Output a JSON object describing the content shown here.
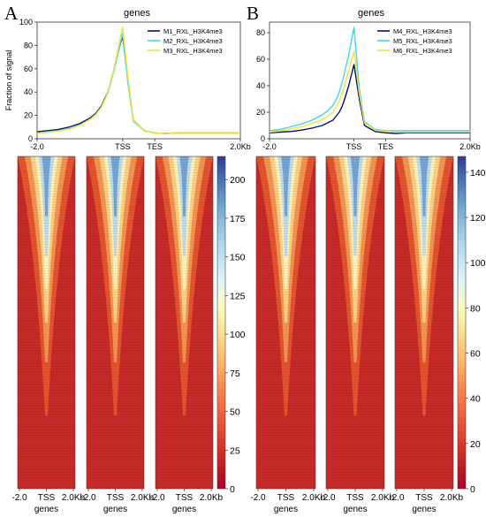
{
  "chart_data": [
    {
      "type": "line",
      "panel": "A",
      "title": "genes",
      "ylabel": "Fraction of signal",
      "xlabel_ticks": [
        "-2.0",
        "TSS",
        "TES",
        "2.0Kb"
      ],
      "ylim": [
        0,
        100
      ],
      "yticks": [
        0,
        20,
        40,
        60,
        80,
        100
      ],
      "legend_position": "top-right",
      "x": [
        0,
        10,
        20,
        30,
        40,
        50,
        55,
        60,
        62,
        64,
        66,
        68,
        70,
        72,
        75,
        80,
        85,
        90,
        100,
        110,
        120,
        130,
        140,
        150,
        160,
        170,
        180,
        190
      ],
      "series": [
        {
          "name": "M1_RXL_H3K4me3",
          "color": "#0d0d6e",
          "values": [
            6,
            7,
            8,
            10,
            13,
            18,
            22,
            28,
            32,
            36,
            40,
            46,
            53,
            60,
            72,
            88,
            50,
            16,
            7,
            5,
            4.5,
            5,
            5,
            5,
            5,
            5,
            5,
            5
          ]
        },
        {
          "name": "M2_RXL_H3K4me3",
          "color": "#3fd6e6",
          "values": [
            5,
            6,
            7,
            9,
            12,
            17,
            21,
            27,
            31,
            35,
            39,
            45,
            52,
            59,
            71,
            90,
            47,
            15,
            7,
            5,
            4.5,
            5,
            5,
            5,
            5,
            5,
            5,
            5
          ]
        },
        {
          "name": "M3_RXL_H3K4me3",
          "color": "#f2e23a",
          "values": [
            4.5,
            5.5,
            6.5,
            8.5,
            11.5,
            17,
            21,
            27,
            31,
            35,
            40,
            46,
            53,
            61,
            74,
            96,
            52,
            16,
            7,
            5,
            4.5,
            5,
            5,
            5,
            5,
            5,
            5,
            5
          ]
        }
      ],
      "heatmap": {
        "xticks": [
          "-2.0",
          "TSS",
          "2.0Kb"
        ],
        "xlabel": "genes",
        "colorbar_ticks": [
          0,
          25,
          50,
          75,
          100,
          125,
          150,
          175,
          200
        ],
        "colorbar_max": 215
      }
    },
    {
      "type": "line",
      "panel": "B",
      "title": "genes",
      "xlabel_ticks": [
        "-2.0",
        "TSS",
        "TES",
        "2.0Kb"
      ],
      "ylim": [
        0,
        88
      ],
      "yticks": [
        0,
        20,
        40,
        60,
        80
      ],
      "legend_position": "top-right",
      "x": [
        0,
        10,
        20,
        30,
        40,
        50,
        55,
        60,
        62,
        64,
        66,
        68,
        70,
        72,
        75,
        80,
        85,
        90,
        100,
        110,
        120,
        130,
        140,
        150,
        160,
        170,
        180,
        190
      ],
      "series": [
        {
          "name": "M4_RXL_H3K4me3",
          "color": "#0d0d6e",
          "values": [
            4.5,
            5,
            5.5,
            6.5,
            8,
            10,
            12,
            14,
            16,
            18,
            20,
            23,
            27,
            32,
            40,
            56,
            30,
            10,
            5.5,
            4.5,
            4,
            4.5,
            4.5,
            4.5,
            4.5,
            4.5,
            4.5,
            4.5
          ]
        },
        {
          "name": "M5_RXL_H3K4me3",
          "color": "#3fd6e6",
          "values": [
            6,
            7,
            9,
            11,
            14,
            18,
            21,
            25,
            28,
            31,
            35,
            40,
            46,
            53,
            63,
            84,
            38,
            13,
            7,
            6,
            6,
            6,
            6,
            6,
            6,
            6,
            6,
            6
          ]
        },
        {
          "name": "M6_RXL_H3K4me3",
          "color": "#f2e23a",
          "values": [
            5,
            6,
            7.5,
            9,
            11.5,
            14.5,
            17,
            20,
            22.5,
            25,
            28,
            32,
            37,
            43,
            51,
            66,
            34,
            12,
            6.5,
            5.5,
            5,
            5,
            5,
            5,
            5,
            5,
            5,
            5
          ]
        }
      ],
      "heatmap": {
        "xticks": [
          "-2.0",
          "TSS",
          "2.0Kb"
        ],
        "xlabel": "genes",
        "colorbar_ticks": [
          0,
          20,
          40,
          60,
          80,
          100,
          120,
          140
        ],
        "colorbar_max": 147
      }
    }
  ],
  "labels": {
    "panel_a": "A",
    "panel_b": "B"
  }
}
